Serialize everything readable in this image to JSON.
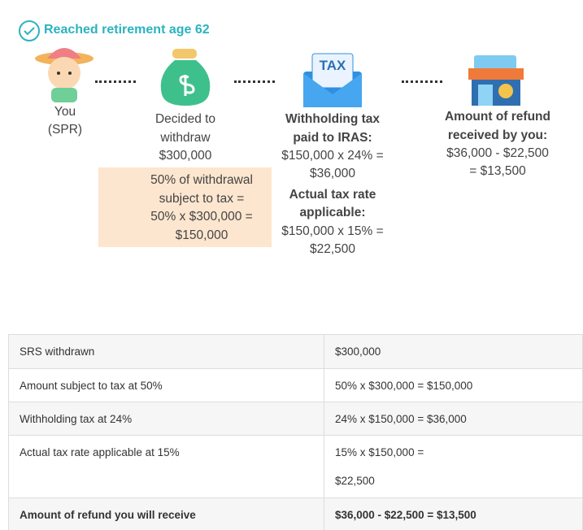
{
  "header": {
    "title": "Reached retirement age 62"
  },
  "nodes": [
    {
      "lines": [
        "You",
        "(SPR)"
      ]
    },
    {
      "lines": [
        "Decided to",
        "withdraw",
        "$300,000"
      ]
    },
    {
      "icon_label": "TAX",
      "lines": [
        "Withholding tax",
        "paid to IRAS:",
        "$150,000 x 24% =",
        "$36,000",
        "Actual tax rate",
        "applicable:",
        "$150,000 x 15% =",
        "$22,500"
      ]
    },
    {
      "lines": [
        "Amount of refund",
        "received by you:",
        "$36,000 - $22,500",
        "= $13,500"
      ]
    }
  ],
  "callout": {
    "lines": [
      "50% of withdrawal",
      "subject to tax =",
      "50% x $300,000 =",
      "$150,000"
    ]
  },
  "table": {
    "rows": [
      [
        "SRS withdrawn",
        "$300,000"
      ],
      [
        "Amount subject to tax at 50%",
        "50% x $300,000 = $150,000"
      ],
      [
        "Withholding tax at 24%",
        "24% x $150,000 = $36,000"
      ],
      [
        "Actual tax rate applicable at 15%",
        [
          "15% x $150,000 =",
          "$22,500"
        ]
      ],
      [
        "Amount of refund you will receive",
        "$36,000 - $22,500 = $13,500"
      ]
    ]
  }
}
